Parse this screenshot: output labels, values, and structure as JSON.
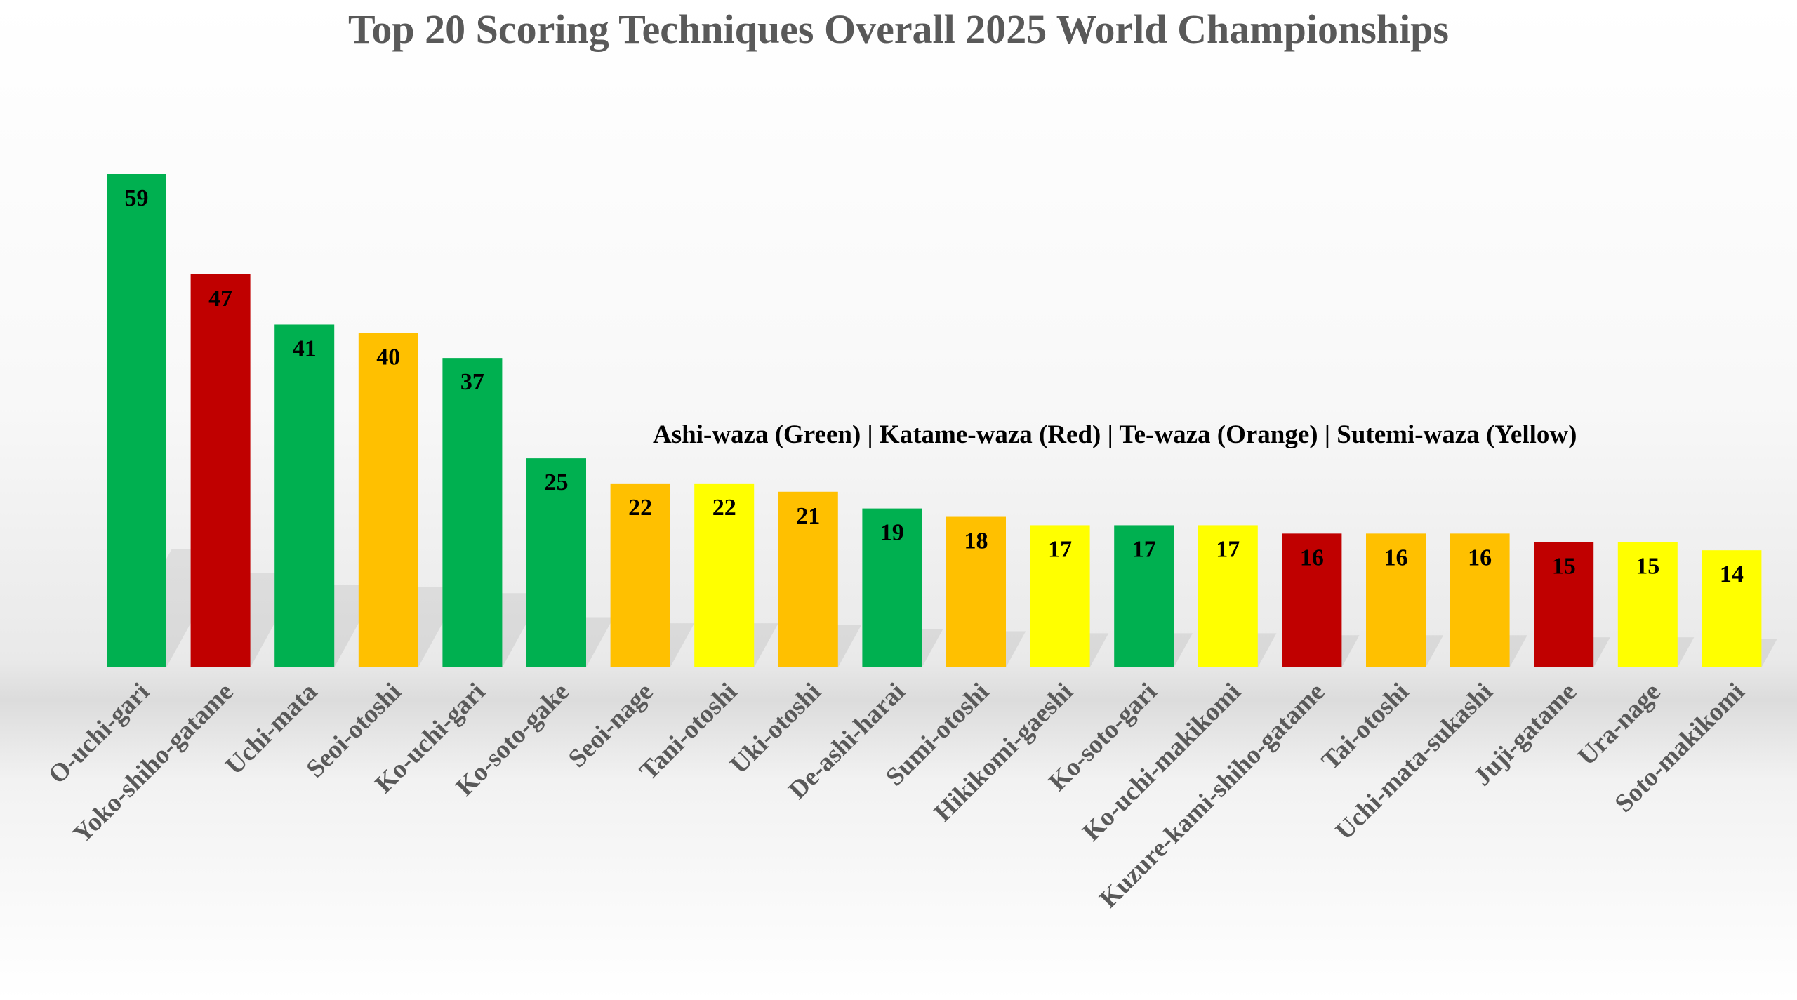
{
  "chart_data": {
    "type": "bar",
    "title": "Top 20 Scoring Techniques Overall 2025 World Championships",
    "annotation": "Ashi-waza (Green) | Katame-waza (Red) | Te-waza (Orange) | Sutemi-waza (Yellow)",
    "xlabel": "",
    "ylabel": "",
    "ylim": [
      0,
      60
    ],
    "grid": false,
    "legend": "none",
    "categories": [
      "O-uchi-gari",
      "Yoko-shiho-gatame",
      "Uchi-mata",
      "Seoi-otoshi",
      "Ko-uchi-gari",
      "Ko-soto-gake",
      "Seoi-nage",
      "Tani-otoshi",
      "Uki-otoshi",
      "De-ashi-harai",
      "Sumi-otoshi",
      "Hikikomi-gaeshi",
      "Ko-soto-gari",
      "Ko-uchi-makikomi",
      "Kuzure-kami-shiho-gatame",
      "Tai-otoshi",
      "Uchi-mata-sukashi",
      "Juji-gatame",
      "Ura-nage",
      "Soto-makikomi"
    ],
    "values": [
      59,
      47,
      41,
      40,
      37,
      25,
      22,
      22,
      21,
      19,
      18,
      17,
      17,
      17,
      16,
      16,
      16,
      15,
      15,
      14
    ],
    "groups": [
      "ashi",
      "katame",
      "ashi",
      "te",
      "ashi",
      "ashi",
      "te",
      "sutemi",
      "te",
      "ashi",
      "te",
      "sutemi",
      "ashi",
      "sutemi",
      "katame",
      "te",
      "te",
      "katame",
      "sutemi",
      "sutemi"
    ]
  },
  "colors": {
    "ashi": "#00b050",
    "katame": "#c00000",
    "te": "#ffc000",
    "sutemi": "#ffff00",
    "title": "#595959",
    "axis_label": "#595959",
    "data_label": "#000000"
  }
}
